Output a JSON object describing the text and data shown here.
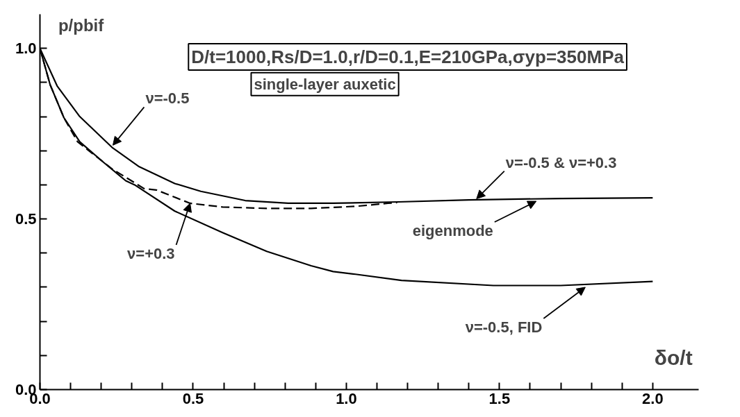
{
  "chart_data": {
    "type": "line",
    "xlabel": "δo/t",
    "ylabel": "p/pbif",
    "grid": false,
    "marker": "none",
    "xlim": [
      0,
      2.15
    ],
    "ylim": [
      0,
      1.1
    ],
    "xticks": [
      {
        "value": 0,
        "label": "0.0"
      },
      {
        "value": 0.1,
        "label": null
      },
      {
        "value": 0.2,
        "label": null
      },
      {
        "value": 0.3,
        "label": null
      },
      {
        "value": 0.4,
        "label": null
      },
      0.5,
      {
        "value": 0.6,
        "label": null
      },
      {
        "value": 0.7,
        "label": null
      },
      {
        "value": 0.8,
        "label": null
      },
      {
        "value": 0.9,
        "label": null
      },
      {
        "value": 1,
        "label": "1.0"
      },
      {
        "value": 1.1,
        "label": null
      },
      {
        "value": 1.2,
        "label": null
      },
      {
        "value": 1.3,
        "label": null
      },
      {
        "value": 1.4,
        "label": null
      },
      1.5,
      {
        "value": 1.6,
        "label": null
      },
      {
        "value": 1.7,
        "label": null
      },
      {
        "value": 1.8,
        "label": null
      },
      {
        "value": 1.9,
        "label": null
      },
      {
        "value": 2,
        "label": "2.0"
      }
    ],
    "yticks": [
      {
        "value": 0,
        "label": "0.0"
      },
      {
        "value": 0.1,
        "label": null
      },
      {
        "value": 0.2,
        "label": null
      },
      {
        "value": 0.3,
        "label": null
      },
      {
        "value": 0.4,
        "label": null
      },
      0.5,
      {
        "value": 0.6,
        "label": null
      },
      {
        "value": 0.7,
        "label": null
      },
      {
        "value": 0.8,
        "label": null
      },
      {
        "value": 0.9,
        "label": null
      },
      {
        "value": 1,
        "label": "1.0"
      }
    ],
    "annotations": [
      "D/t=1000,Rs/D=1.0,r/D=0.1,E=210GPa,σyp=350MPa",
      "single-layer auxetic",
      {
        "text": "ν=-0.5",
        "x": 0.238,
        "y": 0.716
      },
      {
        "text": "ν=+0.3",
        "x": 0.49,
        "y": 0.546
      },
      {
        "text": "ν=-0.5 & ν=+0.3",
        "x": 1.425,
        "y": 0.559
      },
      {
        "text": "eigenmode",
        "x": 1.62,
        "y": 0.552
      },
      {
        "text": "ν=-0.5, FID",
        "x": 1.78,
        "y": 0.3
      }
    ],
    "series": [
      {
        "color": "#000000",
        "line_style": "solid",
        "x": [
          0,
          0.056,
          0.13,
          0.235,
          0.324,
          0.44,
          0.525,
          0.67,
          0.81,
          0.957,
          1.17,
          1.4,
          1.7,
          2.0
        ],
        "values": [
          1.0,
          0.89,
          0.8,
          0.71,
          0.653,
          0.604,
          0.581,
          0.554,
          0.546,
          0.546,
          0.55,
          0.556,
          0.56,
          0.562
        ]
      },
      {
        "color": "#000000",
        "line_style": "dashed",
        "x": [
          0,
          0.033,
          0.078,
          0.123,
          0.235,
          0.34,
          0.38,
          0.49,
          0.596,
          0.74,
          0.885,
          1.03,
          1.136,
          1.166
        ],
        "values": [
          1.0,
          0.894,
          0.797,
          0.726,
          0.647,
          0.589,
          0.585,
          0.546,
          0.535,
          0.531,
          0.531,
          0.537,
          0.546,
          0.548
        ]
      },
      {
        "color": "#000000",
        "line_style": "solid",
        "x": [
          0,
          0.033,
          0.078,
          0.13,
          0.205,
          0.28,
          0.309,
          0.44,
          0.596,
          0.74,
          0.885,
          0.957,
          1.03,
          1.18,
          1.48,
          1.7,
          2.0
        ],
        "values": [
          1.0,
          0.894,
          0.797,
          0.726,
          0.668,
          0.612,
          0.6,
          0.523,
          0.46,
          0.405,
          0.363,
          0.346,
          0.338,
          0.32,
          0.305,
          0.305,
          0.317
        ]
      }
    ]
  }
}
